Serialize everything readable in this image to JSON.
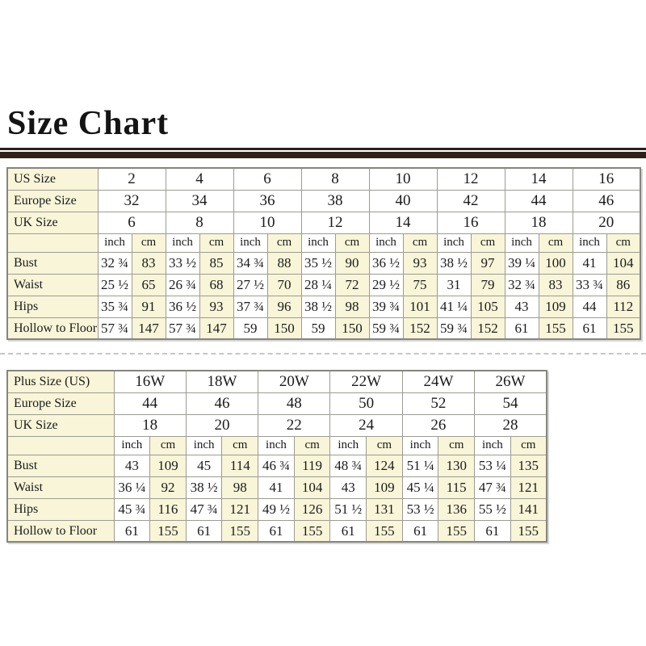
{
  "title": "Size Chart",
  "unit_labels": {
    "inch": "inch",
    "cm": "cm"
  },
  "colors": {
    "cream": "#f8f5d8",
    "grid_border": "#9c9c92",
    "outer_border": "#85857c",
    "title_rule": "#2e2019",
    "divider": "#c6c6c6",
    "text": "#1b1b1b"
  },
  "chart_data": [
    {
      "type": "table",
      "size_rows": [
        {
          "label": "US Size",
          "values": [
            "2",
            "4",
            "6",
            "8",
            "10",
            "12",
            "14",
            "16"
          ]
        },
        {
          "label": "Europe Size",
          "values": [
            "32",
            "34",
            "36",
            "38",
            "40",
            "42",
            "44",
            "46"
          ]
        },
        {
          "label": "UK Size",
          "values": [
            "6",
            "8",
            "10",
            "12",
            "14",
            "16",
            "18",
            "20"
          ]
        }
      ],
      "measure_rows": [
        {
          "label": "Bust",
          "inch": [
            "32 ¾",
            "33 ½",
            "34 ¾",
            "35 ½",
            "36 ½",
            "38 ½",
            "39 ¼",
            "41"
          ],
          "cm": [
            "83",
            "85",
            "88",
            "90",
            "93",
            "97",
            "100",
            "104"
          ]
        },
        {
          "label": "Waist",
          "inch": [
            "25 ½",
            "26 ¾",
            "27 ½",
            "28 ¼",
            "29 ½",
            "31",
            "32 ¾",
            "33 ¾"
          ],
          "cm": [
            "65",
            "68",
            "70",
            "72",
            "75",
            "79",
            "83",
            "86"
          ]
        },
        {
          "label": "Hips",
          "inch": [
            "35 ¾",
            "36 ½",
            "37 ¾",
            "38 ½",
            "39 ¾",
            "41 ¼",
            "43",
            "44"
          ],
          "cm": [
            "91",
            "93",
            "96",
            "98",
            "101",
            "105",
            "109",
            "112"
          ]
        },
        {
          "label": "Hollow to Floor",
          "inch": [
            "57 ¾",
            "57 ¾",
            "59",
            "59",
            "59 ¾",
            "59 ¾",
            "61",
            "61"
          ],
          "cm": [
            "147",
            "147",
            "150",
            "150",
            "152",
            "152",
            "155",
            "155"
          ]
        }
      ]
    },
    {
      "type": "table",
      "size_rows": [
        {
          "label": "Plus Size (US)",
          "values": [
            "16W",
            "18W",
            "20W",
            "22W",
            "24W",
            "26W"
          ]
        },
        {
          "label": "Europe Size",
          "values": [
            "44",
            "46",
            "48",
            "50",
            "52",
            "54"
          ]
        },
        {
          "label": "UK Size",
          "values": [
            "18",
            "20",
            "22",
            "24",
            "26",
            "28"
          ]
        }
      ],
      "measure_rows": [
        {
          "label": "Bust",
          "inch": [
            "43",
            "45",
            "46 ¾",
            "48 ¾",
            "51 ¼",
            "53 ¼"
          ],
          "cm": [
            "109",
            "114",
            "119",
            "124",
            "130",
            "135"
          ]
        },
        {
          "label": "Waist",
          "inch": [
            "36 ¼",
            "38 ½",
            "41",
            "43",
            "45 ¼",
            "47 ¾"
          ],
          "cm": [
            "92",
            "98",
            "104",
            "109",
            "115",
            "121"
          ]
        },
        {
          "label": "Hips",
          "inch": [
            "45 ¾",
            "47 ¾",
            "49 ½",
            "51 ½",
            "53 ½",
            "55 ½"
          ],
          "cm": [
            "116",
            "121",
            "126",
            "131",
            "136",
            "141"
          ]
        },
        {
          "label": "Hollow to Floor",
          "inch": [
            "61",
            "61",
            "61",
            "61",
            "61",
            "61"
          ],
          "cm": [
            "155",
            "155",
            "155",
            "155",
            "155",
            "155"
          ]
        }
      ]
    }
  ]
}
